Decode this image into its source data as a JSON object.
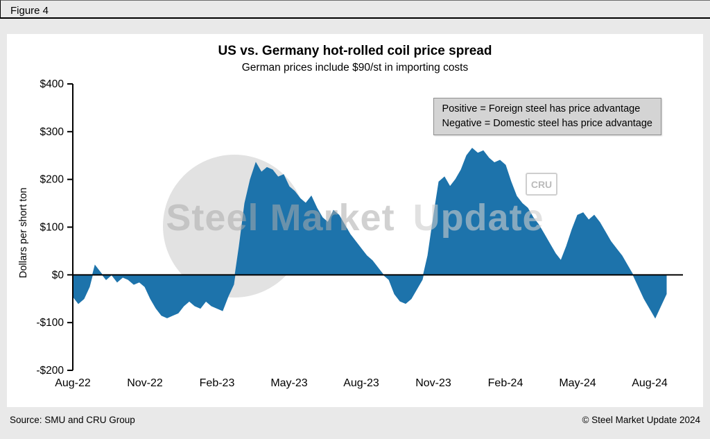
{
  "figure_label": "Figure 4",
  "chart_data": {
    "type": "area",
    "title": "US vs. Germany hot-rolled coil price spread",
    "subtitle": "German prices include $90/st in importing costs",
    "ylabel": "Dollars per short ton",
    "ylim": [
      -200,
      400
    ],
    "baseline": 0,
    "grid": false,
    "fill_color": "#1d73ab",
    "y_ticks": [
      {
        "value": 400,
        "label": "$400"
      },
      {
        "value": 300,
        "label": "$300"
      },
      {
        "value": 200,
        "label": "$200"
      },
      {
        "value": 100,
        "label": "$100"
      },
      {
        "value": 0,
        "label": "$0"
      },
      {
        "value": -100,
        "label": "-$100"
      },
      {
        "value": -200,
        "label": "-$200"
      }
    ],
    "x_ticks": [
      {
        "week": 0,
        "label": "Aug-22"
      },
      {
        "week": 13,
        "label": "Nov-22"
      },
      {
        "week": 26,
        "label": "Feb-23"
      },
      {
        "week": 39,
        "label": "May-23"
      },
      {
        "week": 52,
        "label": "Aug-23"
      },
      {
        "week": 65,
        "label": "Nov-23"
      },
      {
        "week": 78,
        "label": "Feb-24"
      },
      {
        "week": 91,
        "label": "May-24"
      },
      {
        "week": 104,
        "label": "Aug-24"
      }
    ],
    "x_resolution": "weekly, values estimated from plot",
    "values": [
      -45,
      -60,
      -50,
      -25,
      20,
      5,
      -10,
      0,
      -15,
      -5,
      -10,
      -20,
      -15,
      -25,
      -50,
      -70,
      -85,
      -90,
      -85,
      -80,
      -65,
      -55,
      -65,
      -70,
      -55,
      -65,
      -70,
      -75,
      -45,
      -20,
      60,
      150,
      200,
      235,
      215,
      225,
      220,
      205,
      210,
      185,
      175,
      160,
      150,
      165,
      140,
      120,
      110,
      135,
      125,
      105,
      85,
      70,
      55,
      40,
      30,
      15,
      0,
      -10,
      -40,
      -55,
      -60,
      -50,
      -30,
      -10,
      40,
      120,
      195,
      205,
      185,
      200,
      220,
      250,
      265,
      255,
      260,
      245,
      235,
      240,
      230,
      195,
      165,
      150,
      140,
      120,
      105,
      85,
      65,
      45,
      30,
      60,
      95,
      125,
      130,
      115,
      125,
      110,
      90,
      70,
      55,
      40,
      20,
      0,
      -25,
      -50,
      -70,
      -90,
      -65,
      -40
    ],
    "annotation": [
      "Positive = Foreign steel has price advantage",
      "Negative = Domestic steel has price advantage"
    ]
  },
  "watermark": {
    "primary": "Steel Market",
    "secondary": "Update",
    "cru": "CRU"
  },
  "footer": {
    "source": "Source: SMU and CRU Group",
    "copyright": "© Steel Market Update 2024"
  }
}
